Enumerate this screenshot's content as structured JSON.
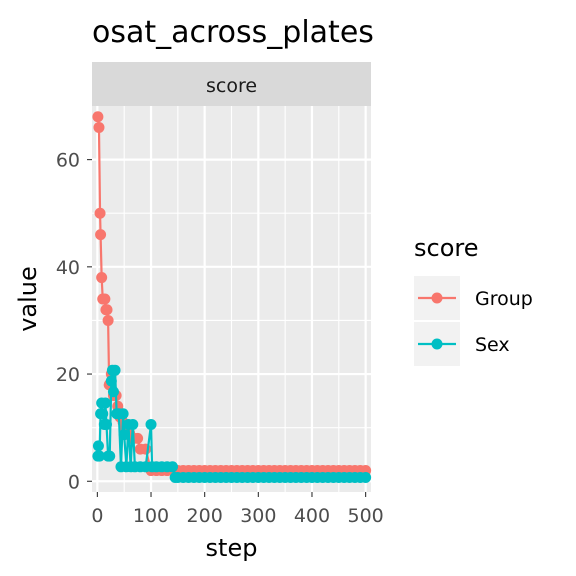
{
  "chart_data": {
    "type": "line",
    "title": "osat_across_plates",
    "facet_label": "score",
    "xlabel": "step",
    "ylabel": "value",
    "xlim": [
      -10,
      510
    ],
    "ylim": [
      -2,
      70
    ],
    "x_ticks": [
      0,
      100,
      200,
      300,
      400,
      500
    ],
    "y_ticks": [
      0,
      20,
      40,
      60
    ],
    "legend": {
      "title": "score",
      "position": "right"
    },
    "grid": true,
    "series": [
      {
        "name": "Group",
        "color": "#F8766D",
        "points": [
          [
            1,
            68
          ],
          [
            3,
            66
          ],
          [
            5,
            50
          ],
          [
            6,
            46
          ],
          [
            8,
            38
          ],
          [
            10,
            34
          ],
          [
            14,
            34
          ],
          [
            16,
            32
          ],
          [
            18,
            32
          ],
          [
            20,
            30
          ],
          [
            22,
            18
          ],
          [
            26,
            20
          ],
          [
            30,
            16
          ],
          [
            35,
            16
          ],
          [
            38,
            14
          ],
          [
            42,
            12
          ],
          [
            45,
            12
          ],
          [
            48,
            11
          ],
          [
            52,
            10
          ],
          [
            56,
            9
          ],
          [
            60,
            9
          ],
          [
            64,
            8
          ],
          [
            68,
            8
          ],
          [
            75,
            8
          ],
          [
            80,
            6
          ],
          [
            90,
            6
          ],
          [
            100,
            2
          ],
          [
            110,
            2
          ],
          [
            120,
            2
          ],
          [
            130,
            2
          ],
          [
            140,
            2
          ],
          [
            150,
            2
          ],
          [
            160,
            2
          ],
          [
            170,
            2
          ],
          [
            180,
            2
          ],
          [
            190,
            2
          ],
          [
            200,
            2
          ],
          [
            210,
            2
          ],
          [
            220,
            2
          ],
          [
            230,
            2
          ],
          [
            240,
            2
          ],
          [
            250,
            2
          ],
          [
            260,
            2
          ],
          [
            270,
            2
          ],
          [
            280,
            2
          ],
          [
            290,
            2
          ],
          [
            300,
            2
          ],
          [
            310,
            2
          ],
          [
            320,
            2
          ],
          [
            330,
            2
          ],
          [
            340,
            2
          ],
          [
            350,
            2
          ],
          [
            360,
            2
          ],
          [
            370,
            2
          ],
          [
            380,
            2
          ],
          [
            390,
            2
          ],
          [
            400,
            2
          ],
          [
            410,
            2
          ],
          [
            420,
            2
          ],
          [
            430,
            2
          ],
          [
            440,
            2
          ],
          [
            450,
            2
          ],
          [
            460,
            2
          ],
          [
            470,
            2
          ],
          [
            480,
            2
          ],
          [
            490,
            2
          ],
          [
            500,
            2
          ]
        ]
      },
      {
        "name": "Sex",
        "color": "#00BFC4",
        "points": [
          [
            1,
            4.7
          ],
          [
            2,
            6.6
          ],
          [
            4,
            4.7
          ],
          [
            6,
            12.6
          ],
          [
            8,
            14.6
          ],
          [
            10,
            12.6
          ],
          [
            13,
            10.6
          ],
          [
            15,
            14.6
          ],
          [
            17,
            10.6
          ],
          [
            20,
            4.7
          ],
          [
            23,
            4.7
          ],
          [
            26,
            18.7
          ],
          [
            28,
            20.7
          ],
          [
            30,
            16.7
          ],
          [
            33,
            20.7
          ],
          [
            36,
            12.6
          ],
          [
            40,
            12.6
          ],
          [
            44,
            2.7
          ],
          [
            48,
            12.6
          ],
          [
            50,
            8.7
          ],
          [
            54,
            2.7
          ],
          [
            58,
            10.6
          ],
          [
            62,
            2.7
          ],
          [
            66,
            10.6
          ],
          [
            70,
            2.7
          ],
          [
            80,
            2.7
          ],
          [
            90,
            2.7
          ],
          [
            100,
            10.6
          ],
          [
            102,
            2.7
          ],
          [
            110,
            2.7
          ],
          [
            120,
            2.7
          ],
          [
            130,
            2.7
          ],
          [
            140,
            2.7
          ],
          [
            145,
            0.7
          ],
          [
            150,
            0.7
          ],
          [
            160,
            0.7
          ],
          [
            170,
            0.7
          ],
          [
            180,
            0.7
          ],
          [
            190,
            0.7
          ],
          [
            200,
            0.7
          ],
          [
            210,
            0.7
          ],
          [
            220,
            0.7
          ],
          [
            230,
            0.7
          ],
          [
            240,
            0.7
          ],
          [
            250,
            0.7
          ],
          [
            260,
            0.7
          ],
          [
            270,
            0.7
          ],
          [
            280,
            0.7
          ],
          [
            290,
            0.7
          ],
          [
            300,
            0.7
          ],
          [
            310,
            0.7
          ],
          [
            320,
            0.7
          ],
          [
            330,
            0.7
          ],
          [
            340,
            0.7
          ],
          [
            350,
            0.7
          ],
          [
            360,
            0.7
          ],
          [
            370,
            0.7
          ],
          [
            380,
            0.7
          ],
          [
            390,
            0.7
          ],
          [
            400,
            0.7
          ],
          [
            410,
            0.7
          ],
          [
            420,
            0.7
          ],
          [
            430,
            0.7
          ],
          [
            440,
            0.7
          ],
          [
            450,
            0.7
          ],
          [
            460,
            0.7
          ],
          [
            470,
            0.7
          ],
          [
            480,
            0.7
          ],
          [
            490,
            0.7
          ],
          [
            500,
            0.7
          ]
        ]
      }
    ]
  }
}
